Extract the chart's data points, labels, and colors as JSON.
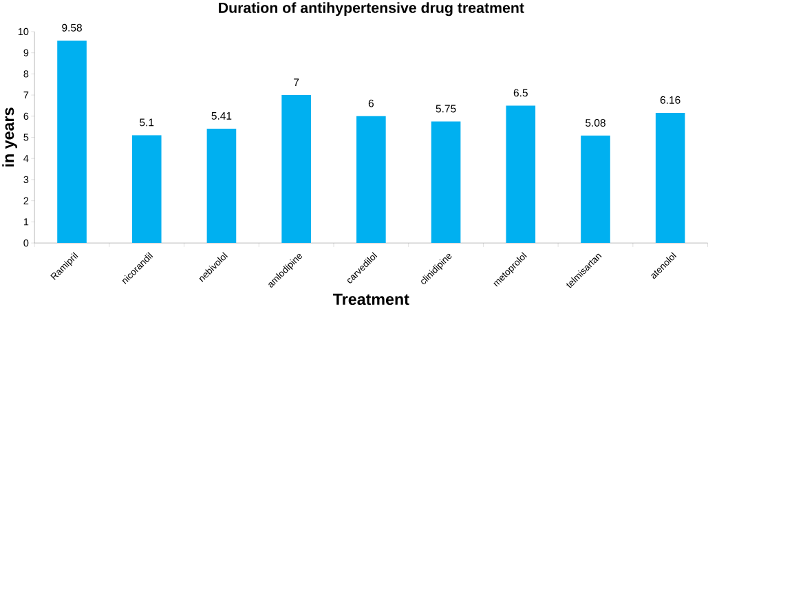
{
  "chart_data": {
    "type": "bar",
    "title": "Duration of antihypertensive drug treatment",
    "xlabel": "Treatment",
    "ylabel": "in years",
    "categories": [
      "Ramipril",
      "nicorandil",
      "nebivolol",
      "amlodipine",
      "carvedilol",
      "clinidipine",
      "metoprolol",
      "telmisartan",
      "atenolol"
    ],
    "values": [
      9.58,
      5.1,
      5.41,
      7,
      6,
      5.75,
      6.5,
      5.08,
      6.16
    ],
    "color": "#00b0f0",
    "data_labels": true,
    "ylim": [
      0,
      10
    ],
    "yticks": [
      0,
      1,
      2,
      3,
      4,
      5,
      6,
      7,
      8,
      9,
      10
    ]
  }
}
